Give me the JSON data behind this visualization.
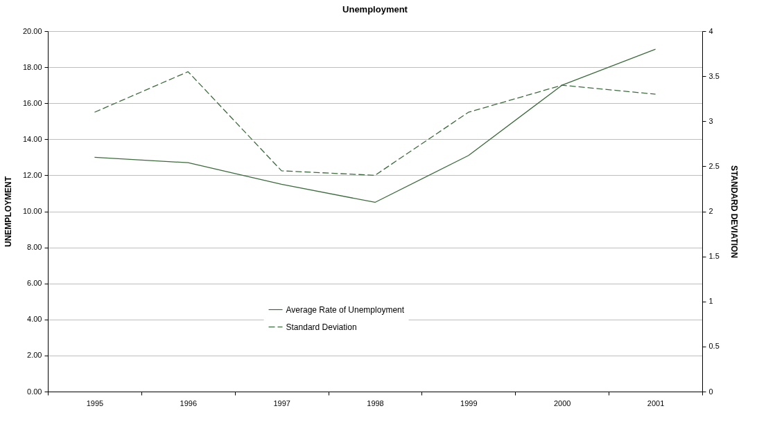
{
  "chart_data": {
    "type": "line",
    "title": "Unemployment",
    "ylabel": "UNEMPLOYMENT",
    "y2label": "STANDARD DEVIATION",
    "categories": [
      "1995",
      "1996",
      "1997",
      "1998",
      "1999",
      "2000",
      "2001"
    ],
    "series": [
      {
        "name": "Average Rate of Unemployment",
        "color": "#3a6b3a",
        "line_style": "solid",
        "values": [
          13.0,
          12.7,
          11.5,
          10.5,
          13.1,
          17.0,
          19.0
        ]
      },
      {
        "name": "Standard Deviation",
        "color": "#3a6b3a",
        "line_style": "dashed",
        "axis": "y2",
        "values": [
          3.1,
          3.55,
          2.45,
          2.4,
          3.1,
          3.4,
          3.3
        ]
      }
    ],
    "ylim": [
      0,
      20
    ],
    "yticks": [
      {
        "value": 0,
        "label": "0.00"
      },
      {
        "value": 2,
        "label": "2.00"
      },
      {
        "value": 4,
        "label": "4.00"
      },
      {
        "value": 6,
        "label": "6.00"
      },
      {
        "value": 8,
        "label": "8.00"
      },
      {
        "value": 10,
        "label": "10.00"
      },
      {
        "value": 12,
        "label": "12.00"
      },
      {
        "value": 14,
        "label": "14.00"
      },
      {
        "value": 16,
        "label": "16.00"
      },
      {
        "value": 18,
        "label": "18.00"
      },
      {
        "value": 20,
        "label": "20.00"
      }
    ],
    "y2lim": [
      0,
      4
    ],
    "y2ticks": [
      0,
      0.5,
      1,
      1.5,
      2,
      2.5,
      3,
      3.5,
      4
    ],
    "grid": "y",
    "legend": "bottom",
    "marker": "none"
  }
}
